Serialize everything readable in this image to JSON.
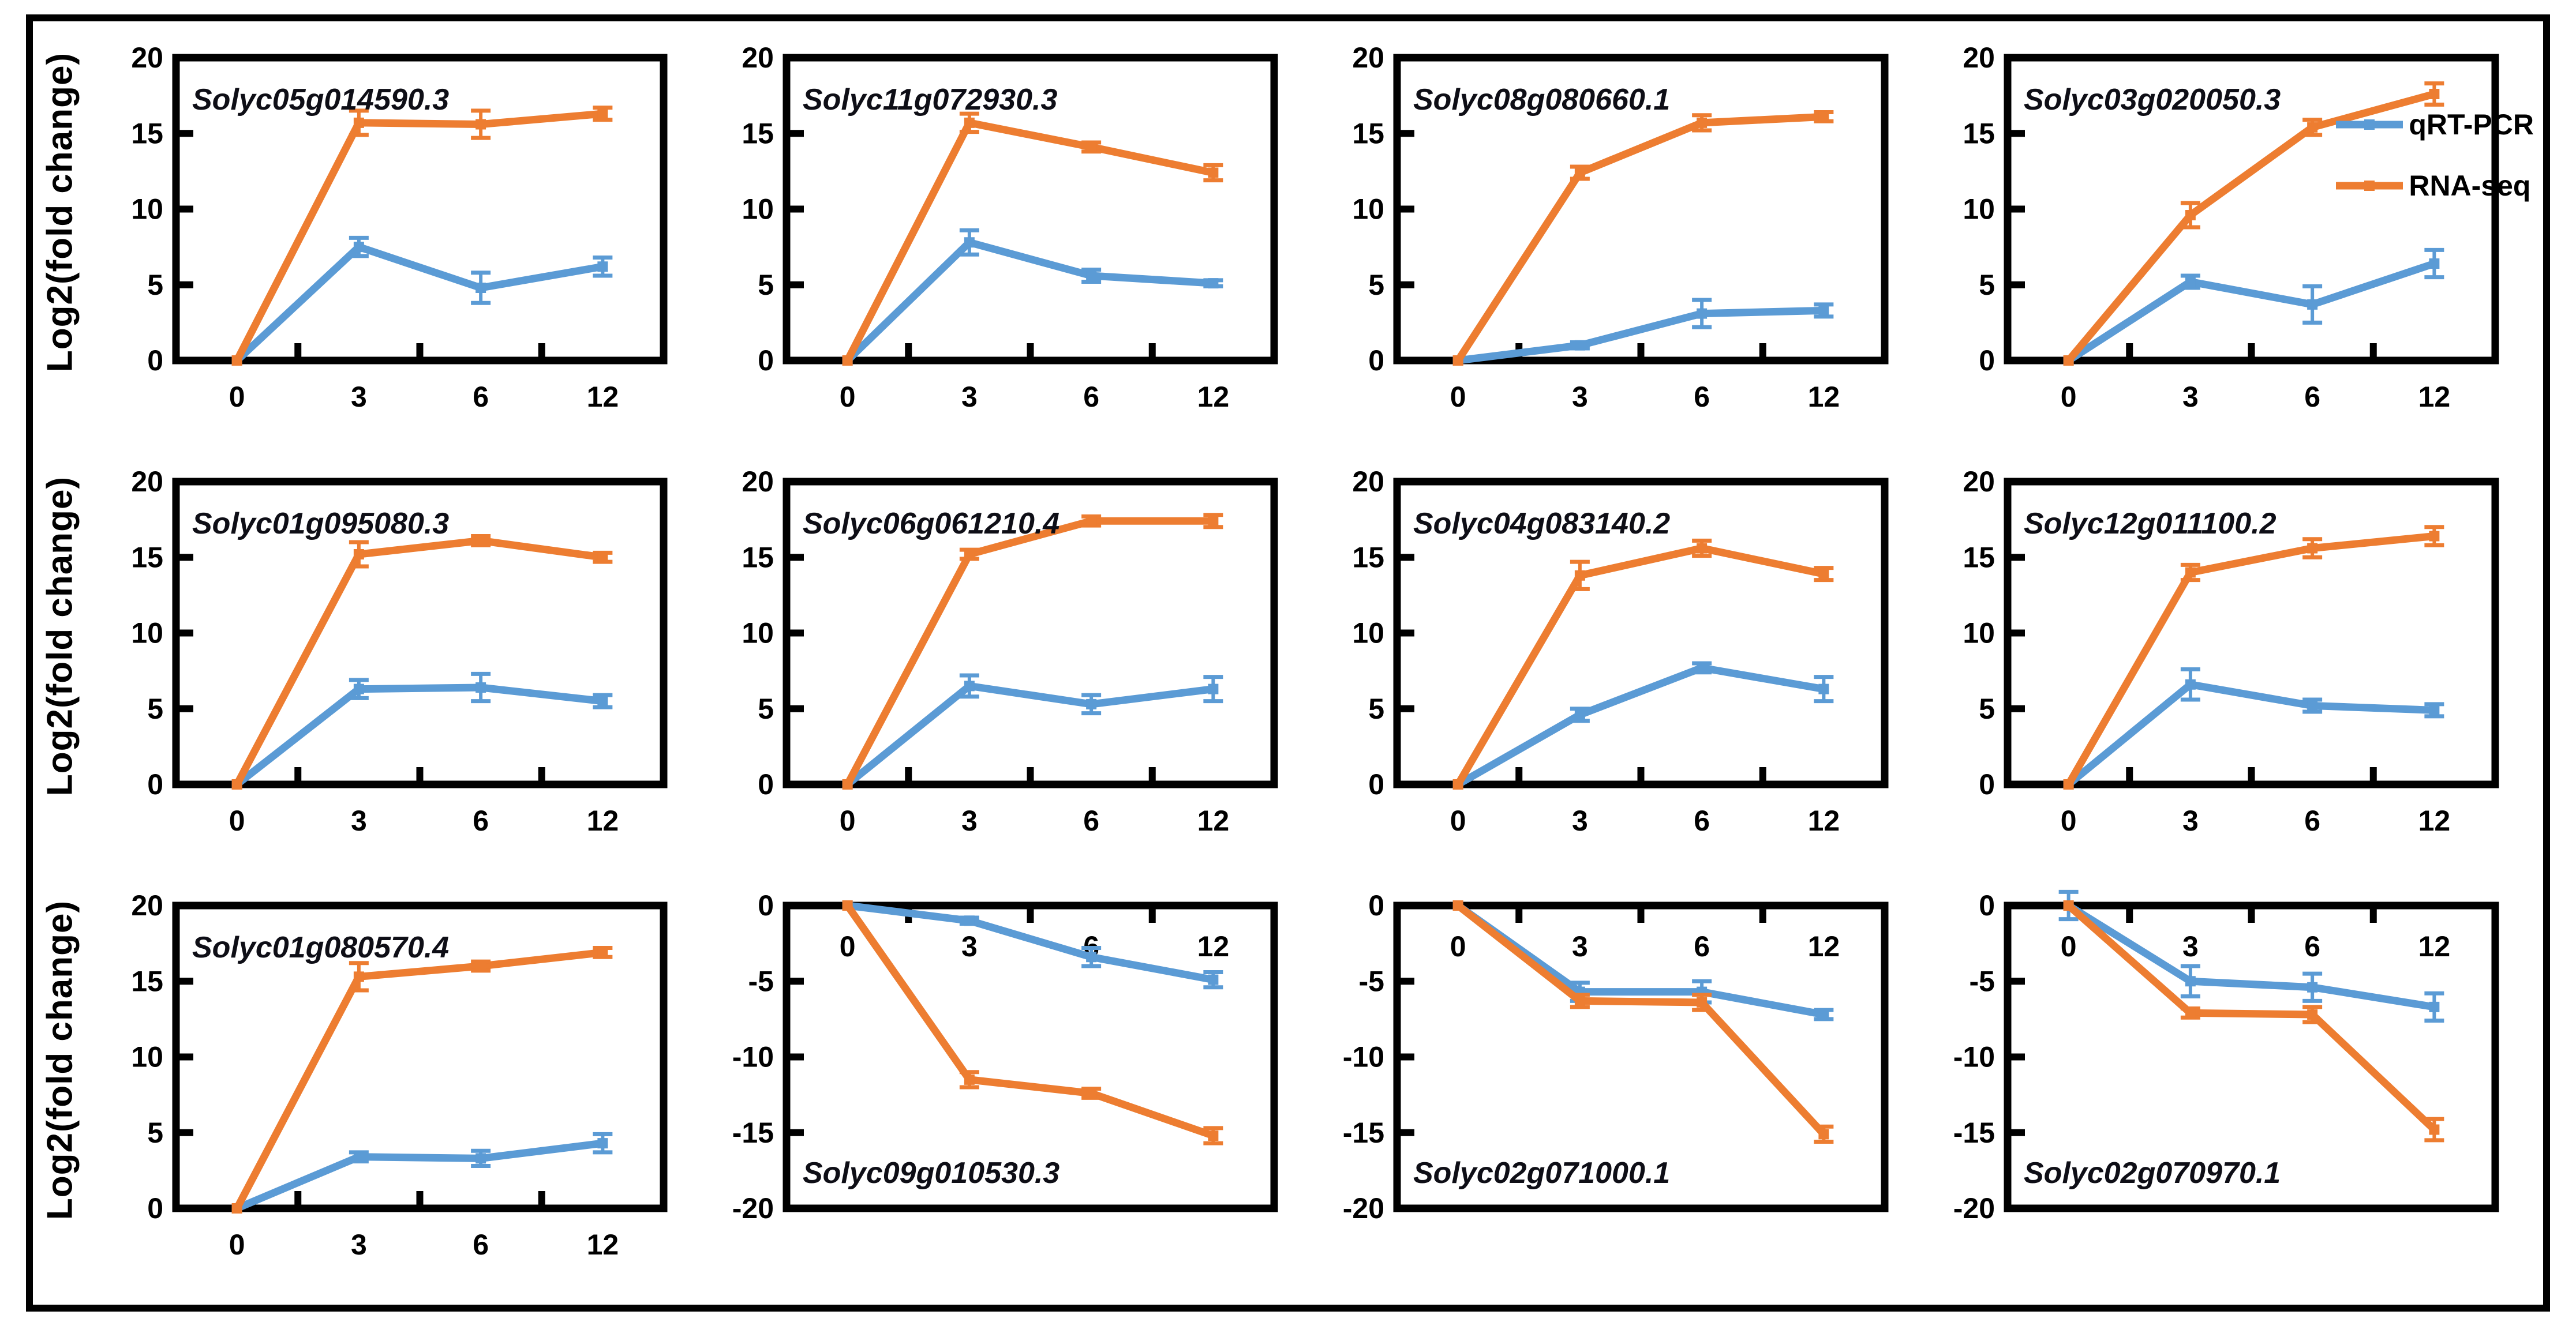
{
  "figure": {
    "ylabel": "Log2(fold change)",
    "legend": [
      {
        "name": "qRT-PCR",
        "color": "#5B9BD5"
      },
      {
        "name": "RNA-seq",
        "color": "#ED7D31"
      }
    ],
    "title_color": "#0e0e16",
    "axis_color": "#000000"
  },
  "chart_data": [
    {
      "type": "line",
      "title": "Solyc05g014590.3",
      "x": [
        "0",
        "3",
        "6",
        "12"
      ],
      "ylim": [
        0,
        20
      ],
      "yticks": [
        0,
        5,
        10,
        15,
        20
      ],
      "direction": "up",
      "series": [
        {
          "name": "qRT-PCR",
          "values": [
            0,
            7.5,
            4.8,
            6.2
          ],
          "errors": [
            0,
            0.6,
            1.0,
            0.6
          ]
        },
        {
          "name": "RNA-seq",
          "values": [
            0,
            15.7,
            15.6,
            16.3
          ],
          "errors": [
            0,
            0.8,
            0.9,
            0.4
          ]
        }
      ]
    },
    {
      "type": "line",
      "title": "Solyc11g072930.3",
      "x": [
        "0",
        "3",
        "6",
        "12"
      ],
      "ylim": [
        0,
        20
      ],
      "yticks": [
        0,
        5,
        10,
        15,
        20
      ],
      "direction": "up",
      "series": [
        {
          "name": "qRT-PCR",
          "values": [
            0,
            7.8,
            5.6,
            5.1
          ],
          "errors": [
            0,
            0.8,
            0.4,
            0.2
          ]
        },
        {
          "name": "RNA-seq",
          "values": [
            0,
            15.7,
            14.1,
            12.4
          ],
          "errors": [
            0,
            0.6,
            0.3,
            0.5
          ]
        }
      ]
    },
    {
      "type": "line",
      "title": "Solyc08g080660.1",
      "x": [
        "0",
        "3",
        "6",
        "12"
      ],
      "ylim": [
        0,
        20
      ],
      "yticks": [
        0,
        5,
        10,
        15,
        20
      ],
      "direction": "up",
      "series": [
        {
          "name": "qRT-PCR",
          "values": [
            0,
            1.0,
            3.1,
            3.3
          ],
          "errors": [
            0,
            0.2,
            0.9,
            0.4
          ]
        },
        {
          "name": "RNA-seq",
          "values": [
            0,
            12.4,
            15.7,
            16.1
          ],
          "errors": [
            0,
            0.4,
            0.5,
            0.3
          ]
        }
      ]
    },
    {
      "type": "line",
      "title": "Solyc03g020050.3",
      "x": [
        "0",
        "3",
        "6",
        "12"
      ],
      "ylim": [
        0,
        20
      ],
      "yticks": [
        0,
        5,
        10,
        15,
        20
      ],
      "direction": "up",
      "series": [
        {
          "name": "qRT-PCR",
          "values": [
            0,
            5.2,
            3.7,
            6.4
          ],
          "errors": [
            0,
            0.4,
            1.2,
            0.9
          ]
        },
        {
          "name": "RNA-seq",
          "values": [
            0,
            9.6,
            15.4,
            17.6
          ],
          "errors": [
            0,
            0.8,
            0.5,
            0.7
          ]
        }
      ]
    },
    {
      "type": "line",
      "title": "Solyc01g095080.3",
      "x": [
        "0",
        "3",
        "6",
        "12"
      ],
      "ylim": [
        0,
        20
      ],
      "yticks": [
        0,
        5,
        10,
        15,
        20
      ],
      "direction": "up",
      "series": [
        {
          "name": "qRT-PCR",
          "values": [
            0,
            6.3,
            6.4,
            5.5
          ],
          "errors": [
            0,
            0.6,
            0.9,
            0.4
          ]
        },
        {
          "name": "RNA-seq",
          "values": [
            0,
            15.2,
            16.1,
            15.0
          ],
          "errors": [
            0,
            0.8,
            0.3,
            0.3
          ]
        }
      ]
    },
    {
      "type": "line",
      "title": "Solyc06g061210.4",
      "x": [
        "0",
        "3",
        "6",
        "12"
      ],
      "ylim": [
        0,
        20
      ],
      "yticks": [
        0,
        5,
        10,
        15,
        20
      ],
      "direction": "up",
      "series": [
        {
          "name": "qRT-PCR",
          "values": [
            0,
            6.5,
            5.3,
            6.3
          ],
          "errors": [
            0,
            0.7,
            0.6,
            0.8
          ]
        },
        {
          "name": "RNA-seq",
          "values": [
            0,
            15.2,
            17.4,
            17.4
          ],
          "errors": [
            0,
            0.3,
            0.3,
            0.4
          ]
        }
      ]
    },
    {
      "type": "line",
      "title": "Solyc04g083140.2",
      "x": [
        "0",
        "3",
        "6",
        "12"
      ],
      "ylim": [
        0,
        20
      ],
      "yticks": [
        0,
        5,
        10,
        15,
        20
      ],
      "direction": "up",
      "series": [
        {
          "name": "qRT-PCR",
          "values": [
            0,
            4.6,
            7.7,
            6.3
          ],
          "errors": [
            0,
            0.4,
            0.3,
            0.8
          ]
        },
        {
          "name": "RNA-seq",
          "values": [
            0,
            13.8,
            15.6,
            13.9
          ],
          "errors": [
            0,
            0.9,
            0.5,
            0.4
          ]
        }
      ]
    },
    {
      "type": "line",
      "title": "Solyc12g011100.2",
      "x": [
        "0",
        "3",
        "6",
        "12"
      ],
      "ylim": [
        0,
        20
      ],
      "yticks": [
        0,
        5,
        10,
        15,
        20
      ],
      "direction": "up",
      "series": [
        {
          "name": "qRT-PCR",
          "values": [
            0,
            6.6,
            5.2,
            4.9
          ],
          "errors": [
            0,
            1.0,
            0.4,
            0.4
          ]
        },
        {
          "name": "RNA-seq",
          "values": [
            0,
            14.0,
            15.6,
            16.4
          ],
          "errors": [
            0,
            0.5,
            0.6,
            0.6
          ]
        }
      ]
    },
    {
      "type": "line",
      "title": "Solyc01g080570.4",
      "x": [
        "0",
        "3",
        "6",
        "12"
      ],
      "ylim": [
        0,
        20
      ],
      "yticks": [
        0,
        5,
        10,
        15,
        20
      ],
      "direction": "up",
      "series": [
        {
          "name": "qRT-PCR",
          "values": [
            0,
            3.4,
            3.3,
            4.3
          ],
          "errors": [
            0,
            0.3,
            0.5,
            0.6
          ]
        },
        {
          "name": "RNA-seq",
          "values": [
            0,
            15.3,
            16.0,
            16.9
          ],
          "errors": [
            0,
            0.9,
            0.3,
            0.3
          ]
        }
      ]
    },
    {
      "type": "line",
      "title": "Solyc09g010530.3",
      "x": [
        "0",
        "3",
        "6",
        "12"
      ],
      "ylim": [
        -20,
        0
      ],
      "yticks": [
        0,
        -5,
        -10,
        -15,
        -20
      ],
      "direction": "down",
      "series": [
        {
          "name": "qRT-PCR",
          "values": [
            0,
            -1.0,
            -3.4,
            -4.9
          ],
          "errors": [
            0,
            0.2,
            0.6,
            0.5
          ]
        },
        {
          "name": "RNA-seq",
          "values": [
            0,
            -11.5,
            -12.4,
            -15.2
          ],
          "errors": [
            0,
            0.5,
            0.3,
            0.5
          ]
        }
      ]
    },
    {
      "type": "line",
      "title": "Solyc02g071000.1",
      "x": [
        "0",
        "3",
        "6",
        "12"
      ],
      "ylim": [
        -20,
        0
      ],
      "yticks": [
        0,
        -5,
        -10,
        -15,
        -20
      ],
      "direction": "down",
      "series": [
        {
          "name": "qRT-PCR",
          "values": [
            0,
            -5.7,
            -5.7,
            -7.2
          ],
          "errors": [
            0,
            0.6,
            0.7,
            0.3
          ]
        },
        {
          "name": "RNA-seq",
          "values": [
            0,
            -6.3,
            -6.4,
            -15.1
          ],
          "errors": [
            0,
            0.4,
            0.5,
            0.5
          ]
        }
      ]
    },
    {
      "type": "line",
      "title": "Solyc02g070970.1",
      "x": [
        "0",
        "3",
        "6",
        "12"
      ],
      "ylim": [
        -20,
        0
      ],
      "yticks": [
        0,
        -5,
        -10,
        -15,
        -20
      ],
      "direction": "down",
      "series": [
        {
          "name": "qRT-PCR",
          "values": [
            0,
            -5.0,
            -5.4,
            -6.7
          ],
          "errors": [
            0.9,
            1.0,
            0.9,
            0.9
          ]
        },
        {
          "name": "RNA-seq",
          "values": [
            0,
            -7.1,
            -7.2,
            -14.8
          ],
          "errors": [
            0,
            0.3,
            0.5,
            0.7
          ]
        }
      ]
    }
  ]
}
